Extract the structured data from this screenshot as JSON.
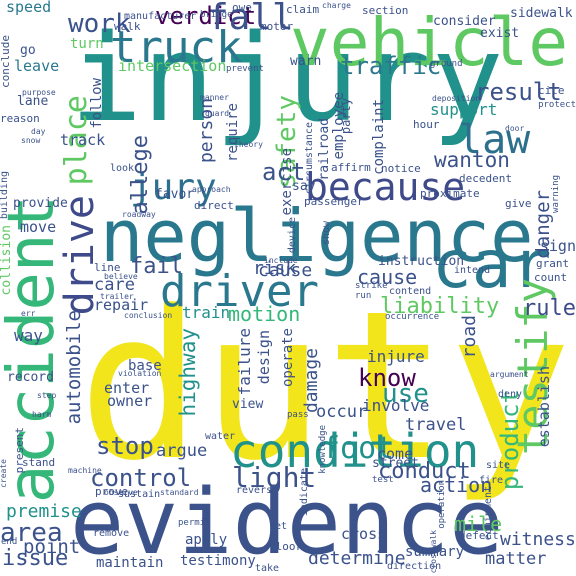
{
  "words": [
    {
      "text": "injury",
      "color": "#21918c"
    },
    {
      "text": "duty",
      "color": "#f2e51b"
    },
    {
      "text": "evidence",
      "color": "#3b528b"
    },
    {
      "text": "negligence",
      "color": "#2a788e"
    },
    {
      "text": "vehicle",
      "color": "#5ec962"
    },
    {
      "text": "accident",
      "color": "#35b779"
    },
    {
      "text": "condition",
      "color": "#21918c"
    },
    {
      "text": "car",
      "color": "#2a788e"
    },
    {
      "text": "because",
      "color": "#3e4a89"
    },
    {
      "text": "truck",
      "color": "#2a788e"
    },
    {
      "text": "driver",
      "color": "#2a788e"
    },
    {
      "text": "testify",
      "color": "#5ec962"
    },
    {
      "text": "jury",
      "color": "#2d6f8e"
    },
    {
      "text": "drive",
      "color": "#3e4a89"
    },
    {
      "text": "place",
      "color": "#5ec962"
    },
    {
      "text": "law",
      "color": "#2d708e"
    },
    {
      "text": "verdict",
      "color": "#440154"
    },
    {
      "text": "fall",
      "color": "#3b528b"
    },
    {
      "text": "work",
      "color": "#3b528b"
    },
    {
      "text": "traffic",
      "color": "#2a788e"
    },
    {
      "text": "result",
      "color": "#3b528b"
    },
    {
      "text": "allege",
      "color": "#3b528b"
    },
    {
      "text": "safety",
      "color": "#5ec962"
    },
    {
      "text": "liability",
      "color": "#5ec962"
    },
    {
      "text": "fail",
      "color": "#3b528b"
    },
    {
      "text": "motion",
      "color": "#35b779"
    },
    {
      "text": "cause",
      "color": "#3b528b"
    },
    {
      "text": "foot",
      "color": "#21918c"
    },
    {
      "text": "product",
      "color": "#35b779"
    },
    {
      "text": "know",
      "color": "#440154"
    },
    {
      "text": "light",
      "color": "#3b528b"
    },
    {
      "text": "use",
      "color": "#21918c"
    },
    {
      "text": "control",
      "color": "#3b528b"
    },
    {
      "text": "stop",
      "color": "#3b528b"
    },
    {
      "text": "area",
      "color": "#3b528b"
    },
    {
      "text": "issue",
      "color": "#3b528b"
    },
    {
      "text": "conduct",
      "color": "#3b528b"
    },
    {
      "text": "rule",
      "color": "#3e4a89"
    },
    {
      "text": "automobile",
      "color": "#3b528b"
    },
    {
      "text": "highway",
      "color": "#21918c"
    },
    {
      "text": "damage",
      "color": "#3b528b"
    },
    {
      "text": "danger",
      "color": "#3b528b"
    },
    {
      "text": "wanton",
      "color": "#3b528b"
    },
    {
      "text": "person",
      "color": "#3b528b"
    },
    {
      "text": "act",
      "color": "#3b528b"
    },
    {
      "text": "risk",
      "color": "#3b528b"
    },
    {
      "text": "speed",
      "color": "#2a788e"
    },
    {
      "text": "leave",
      "color": "#2a788e"
    },
    {
      "text": "lane",
      "color": "#3b528b"
    },
    {
      "text": "track",
      "color": "#3b528b"
    },
    {
      "text": "follow",
      "color": "#3b528b"
    },
    {
      "text": "turn",
      "color": "#5ec962"
    },
    {
      "text": "intersection",
      "color": "#5ec962"
    },
    {
      "text": "require",
      "color": "#3b528b"
    },
    {
      "text": "exercise",
      "color": "#3b528b"
    },
    {
      "text": "railroad",
      "color": "#3b528b"
    },
    {
      "text": "employee",
      "color": "#3b528b"
    },
    {
      "text": "complaint",
      "color": "#3b528b"
    },
    {
      "text": "support",
      "color": "#21918c"
    },
    {
      "text": "road",
      "color": "#3b528b"
    },
    {
      "text": "cause",
      "color": "#3b528b"
    },
    {
      "text": "care",
      "color": "#3b528b"
    },
    {
      "text": "repair",
      "color": "#3b528b"
    },
    {
      "text": "train",
      "color": "#21918c"
    },
    {
      "text": "operate",
      "color": "#3b528b"
    },
    {
      "text": "failure",
      "color": "#3b528b"
    },
    {
      "text": "design",
      "color": "#3b528b"
    },
    {
      "text": "injure",
      "color": "#3b528b"
    },
    {
      "text": "involve",
      "color": "#3b528b"
    },
    {
      "text": "travel",
      "color": "#3b528b"
    },
    {
      "text": "occur",
      "color": "#3b528b"
    },
    {
      "text": "establish",
      "color": "#3b528b"
    },
    {
      "text": "action",
      "color": "#3b528b"
    },
    {
      "text": "argue",
      "color": "#3b528b"
    },
    {
      "text": "enter",
      "color": "#3b528b"
    },
    {
      "text": "owner",
      "color": "#3b528b"
    },
    {
      "text": "point",
      "color": "#3b528b"
    },
    {
      "text": "premise",
      "color": "#21918c"
    },
    {
      "text": "mile",
      "color": "#5ec962"
    },
    {
      "text": "witness",
      "color": "#3b528b"
    },
    {
      "text": "matter",
      "color": "#3b528b"
    },
    {
      "text": "determine",
      "color": "#3b528b"
    },
    {
      "text": "testimony",
      "color": "#3b528b"
    },
    {
      "text": "maintain",
      "color": "#3b528b"
    },
    {
      "text": "apply",
      "color": "#3b528b"
    },
    {
      "text": "summary",
      "color": "#3b528b"
    },
    {
      "text": "cross",
      "color": "#3b528b"
    },
    {
      "text": "record",
      "color": "#3b528b"
    },
    {
      "text": "way",
      "color": "#3b528b"
    },
    {
      "text": "move",
      "color": "#3b528b"
    },
    {
      "text": "provide",
      "color": "#3b528b"
    },
    {
      "text": "favor",
      "color": "#3b528b"
    },
    {
      "text": "say",
      "color": "#3b528b"
    },
    {
      "text": "sign",
      "color": "#3b528b"
    },
    {
      "text": "instruction",
      "color": "#3b528b"
    },
    {
      "text": "base",
      "color": "#3b528b"
    },
    {
      "text": "come",
      "color": "#3b528b"
    },
    {
      "text": "street",
      "color": "#3b528b"
    },
    {
      "text": "view",
      "color": "#3b528b"
    },
    {
      "text": "go",
      "color": "#3b528b"
    },
    {
      "text": "warn",
      "color": "#3b528b"
    },
    {
      "text": "consider",
      "color": "#3b528b"
    },
    {
      "text": "sidewalk",
      "color": "#3b528b"
    },
    {
      "text": "exist",
      "color": "#3b528b"
    },
    {
      "text": "section",
      "color": "#3b528b"
    },
    {
      "text": "claim",
      "color": "#3b528b"
    },
    {
      "text": "walk",
      "color": "#3b528b"
    },
    {
      "text": "motor",
      "color": "#3b528b"
    },
    {
      "text": "owe",
      "color": "#3b528b"
    },
    {
      "text": "manufacturer",
      "color": "#3b528b"
    },
    {
      "text": "conclude",
      "color": "#3b528b"
    },
    {
      "text": "reason",
      "color": "#3b528b"
    },
    {
      "text": "party",
      "color": "#3b528b"
    },
    {
      "text": "affirm",
      "color": "#3b528b"
    },
    {
      "text": "notice",
      "color": "#3b528b"
    },
    {
      "text": "decedent",
      "color": "#3b528b"
    },
    {
      "text": "give",
      "color": "#3b528b"
    },
    {
      "text": "proximate",
      "color": "#3b528b"
    },
    {
      "text": "hour",
      "color": "#3b528b"
    },
    {
      "text": "grant",
      "color": "#3b528b"
    },
    {
      "text": "count",
      "color": "#3b528b"
    },
    {
      "text": "passenger",
      "color": "#3b528b"
    },
    {
      "text": "direct",
      "color": "#3b528b"
    },
    {
      "text": "collision",
      "color": "#5ec962"
    },
    {
      "text": "contend",
      "color": "#3b528b"
    },
    {
      "text": "circumstance",
      "color": "#3b528b"
    },
    {
      "text": "cite",
      "color": "#3b528b"
    },
    {
      "text": "protect",
      "color": "#3b528b"
    },
    {
      "text": "prevent",
      "color": "#3b528b"
    },
    {
      "text": "intend",
      "color": "#3b528b"
    },
    {
      "text": "strike",
      "color": "#3b528b"
    },
    {
      "text": "run",
      "color": "#3b528b"
    },
    {
      "text": "look",
      "color": "#3b528b"
    },
    {
      "text": "building",
      "color": "#3b528b"
    },
    {
      "text": "device",
      "color": "#3b528b"
    },
    {
      "text": "show",
      "color": "#3b528b"
    },
    {
      "text": "line",
      "color": "#3b528b"
    },
    {
      "text": "pass",
      "color": "#3b528b"
    },
    {
      "text": "knowledge",
      "color": "#3b528b"
    },
    {
      "text": "deny",
      "color": "#3b528b"
    },
    {
      "text": "occurrence",
      "color": "#3b528b"
    },
    {
      "text": "water",
      "color": "#3b528b"
    },
    {
      "text": "prove",
      "color": "#3b528b"
    },
    {
      "text": "stand",
      "color": "#3b528b"
    },
    {
      "text": "present",
      "color": "#3b528b"
    },
    {
      "text": "sustain",
      "color": "#3b528b"
    },
    {
      "text": "reverse",
      "color": "#3b528b"
    },
    {
      "text": "test",
      "color": "#3b528b"
    },
    {
      "text": "indicate",
      "color": "#3b528b"
    },
    {
      "text": "site",
      "color": "#3b528b"
    },
    {
      "text": "fire",
      "color": "#3b528b"
    },
    {
      "text": "equipment",
      "color": "#3b528b"
    },
    {
      "text": "remove",
      "color": "#3b528b"
    },
    {
      "text": "permit",
      "color": "#3b528b"
    },
    {
      "text": "set",
      "color": "#3b528b"
    },
    {
      "text": "floor",
      "color": "#3b528b"
    },
    {
      "text": "defect",
      "color": "#3b528b"
    },
    {
      "text": "operation",
      "color": "#3b528b"
    },
    {
      "text": "take",
      "color": "#3b528b"
    },
    {
      "text": "direction",
      "color": "#3b528b"
    },
    {
      "text": "end",
      "color": "#3b528b"
    },
    {
      "text": "manner",
      "color": "#3b528b"
    },
    {
      "text": "guard",
      "color": "#3b528b"
    },
    {
      "text": "ground",
      "color": "#3b528b"
    },
    {
      "text": "bridge",
      "color": "#3b528b"
    },
    {
      "text": "charge",
      "color": "#3b528b"
    },
    {
      "text": "theory",
      "color": "#3b528b"
    },
    {
      "text": "warning",
      "color": "#3b528b"
    },
    {
      "text": "roadway",
      "color": "#3b528b"
    },
    {
      "text": "believe",
      "color": "#3b528b"
    },
    {
      "text": "include",
      "color": "#3b528b"
    },
    {
      "text": "trailer",
      "color": "#3b528b"
    },
    {
      "text": "conclusion",
      "color": "#3b528b"
    },
    {
      "text": "argument",
      "color": "#3b528b"
    },
    {
      "text": "create",
      "color": "#3b528b"
    },
    {
      "text": "observe",
      "color": "#3b528b"
    },
    {
      "text": "standard",
      "color": "#3b528b"
    },
    {
      "text": "machine",
      "color": "#3b528b"
    },
    {
      "text": "violation",
      "color": "#3b528b"
    },
    {
      "text": "crosswalk",
      "color": "#3b528b"
    },
    {
      "text": "approach",
      "color": "#3b528b"
    },
    {
      "text": "deposition",
      "color": "#3b528b"
    },
    {
      "text": "door",
      "color": "#3b528b"
    },
    {
      "text": "step",
      "color": "#3b528b"
    },
    {
      "text": "harm",
      "color": "#3b528b"
    },
    {
      "text": "purpose",
      "color": "#3b528b"
    },
    {
      "text": "snow",
      "color": "#3b528b"
    },
    {
      "text": "day",
      "color": "#3b528b"
    },
    {
      "text": "err",
      "color": "#3b528b"
    }
  ]
}
